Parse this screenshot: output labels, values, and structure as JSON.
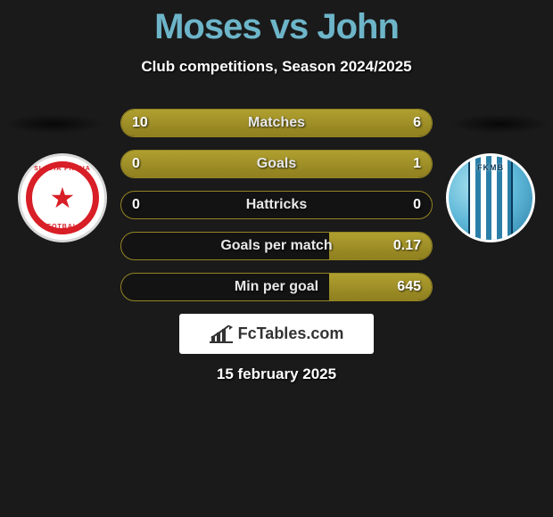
{
  "title": {
    "player1": "Moses",
    "vs": "vs",
    "player2": "John"
  },
  "subtitle": "Club competitions, Season 2024/2025",
  "colors": {
    "accent_bar": "#9b8b27",
    "title_color": "#6db5c9",
    "badge_left_ring": "#d81e26",
    "badge_right_bg": "#5fb8d8"
  },
  "stats": [
    {
      "label": "Matches",
      "left_val": "10",
      "right_val": "6",
      "left_pct": 19,
      "right_pct": 81
    },
    {
      "label": "Goals",
      "left_val": "0",
      "right_val": "1",
      "left_pct": 0,
      "right_pct": 100
    },
    {
      "label": "Hattricks",
      "left_val": "0",
      "right_val": "0",
      "left_pct": 0,
      "right_pct": 0
    },
    {
      "label": "Goals per match",
      "left_val": "",
      "right_val": "0.17",
      "left_pct": 0,
      "right_pct": 33
    },
    {
      "label": "Min per goal",
      "left_val": "",
      "right_val": "645",
      "left_pct": 0,
      "right_pct": 33
    }
  ],
  "brand": "FcTables.com",
  "date": "15 february 2025",
  "badge_left": {
    "text_top": "SLAVIA PRAHA",
    "text_bottom": "FOTBAL"
  },
  "badge_right": {
    "text": "FKMB"
  }
}
